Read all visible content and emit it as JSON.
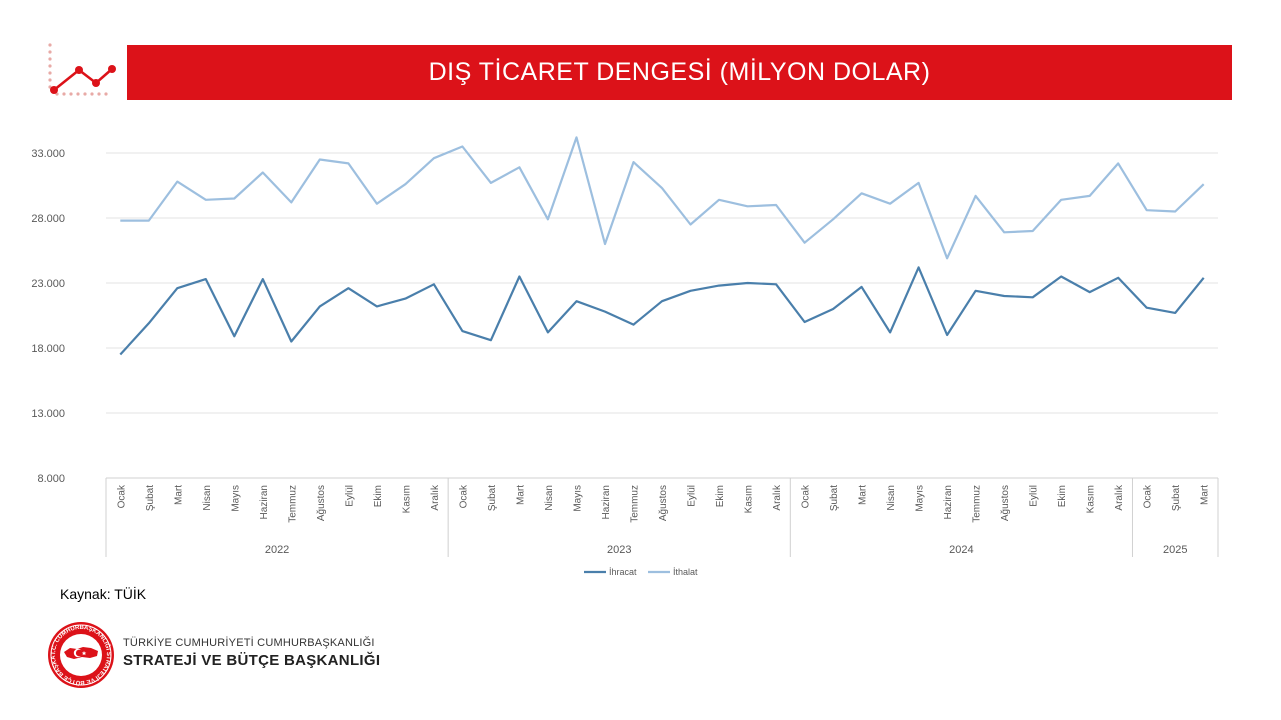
{
  "header": {
    "title": "DIŞ TİCARET DENGESİ (MİLYON DOLAR)",
    "icon": "line-chart-icon"
  },
  "source": "Kaynak: TÜİK",
  "org": {
    "line1": "TÜRKİYE CUMHURİYETİ CUMHURBAŞKANLIĞI",
    "line2": "STRATEJİ VE BÜTÇE BAŞKANLIĞI",
    "logo_ring_text": "T.C. CUMHURBAŞKANLIĞI STRATEJİ VE BÜTÇE BAŞKANLIĞI"
  },
  "colors": {
    "accent": "#dc1219",
    "ihracat": "#4a7fab",
    "ithalat": "#9dbfdf"
  },
  "chart_data": {
    "type": "line",
    "title": "DIŞ TİCARET DENGESİ (MİLYON DOLAR)",
    "ylabel": "",
    "xlabel": "",
    "ylim": [
      8000,
      33000
    ],
    "yticks": [
      8000,
      13000,
      18000,
      23000,
      28000,
      33000
    ],
    "ytick_labels": [
      "8.000",
      "13.000",
      "18.000",
      "23.000",
      "28.000",
      "33.000"
    ],
    "grid": true,
    "legend": "bottom-center",
    "categories": [
      "Ocak",
      "Şubat",
      "Mart",
      "Nisan",
      "Mayıs",
      "Haziran",
      "Temmuz",
      "Ağustos",
      "Eylül",
      "Ekim",
      "Kasım",
      "Aralık",
      "Ocak",
      "Şubat",
      "Mart",
      "Nisan",
      "Mayıs",
      "Haziran",
      "Temmuz",
      "Ağustos",
      "Eylül",
      "Ekim",
      "Kasım",
      "Aralık",
      "Ocak",
      "Şubat",
      "Mart",
      "Nisan",
      "Mayıs",
      "Haziran",
      "Temmuz",
      "Ağustos",
      "Eylül",
      "Ekim",
      "Kasım",
      "Aralık",
      "Ocak",
      "Şubat",
      "Mart"
    ],
    "year_groups": [
      {
        "label": "2022",
        "count": 12
      },
      {
        "label": "2023",
        "count": 12
      },
      {
        "label": "2024",
        "count": 12
      },
      {
        "label": "2025",
        "count": 3
      }
    ],
    "series": [
      {
        "name": "İhracat",
        "color": "#4a7fab",
        "values": [
          17500,
          19900,
          22600,
          23300,
          18900,
          23300,
          18500,
          21200,
          22600,
          21200,
          21800,
          22900,
          19300,
          18600,
          23500,
          19200,
          21600,
          20800,
          19800,
          21600,
          22400,
          22800,
          23000,
          22900,
          20000,
          21000,
          22700,
          19200,
          24200,
          19000,
          22400,
          22000,
          21900,
          23500,
          22300,
          23400,
          21100,
          20700,
          23400
        ]
      },
      {
        "name": "İthalat",
        "color": "#9dbfdf",
        "values": [
          27800,
          27800,
          30800,
          29400,
          29500,
          31500,
          29200,
          32500,
          32200,
          29100,
          30600,
          32600,
          33500,
          30700,
          31900,
          27900,
          34200,
          26000,
          32300,
          30300,
          27500,
          29400,
          28900,
          29000,
          26100,
          27900,
          29900,
          29100,
          30700,
          24900,
          29700,
          26900,
          27000,
          29400,
          29700,
          32200,
          28600,
          28500,
          30600
        ]
      }
    ]
  }
}
